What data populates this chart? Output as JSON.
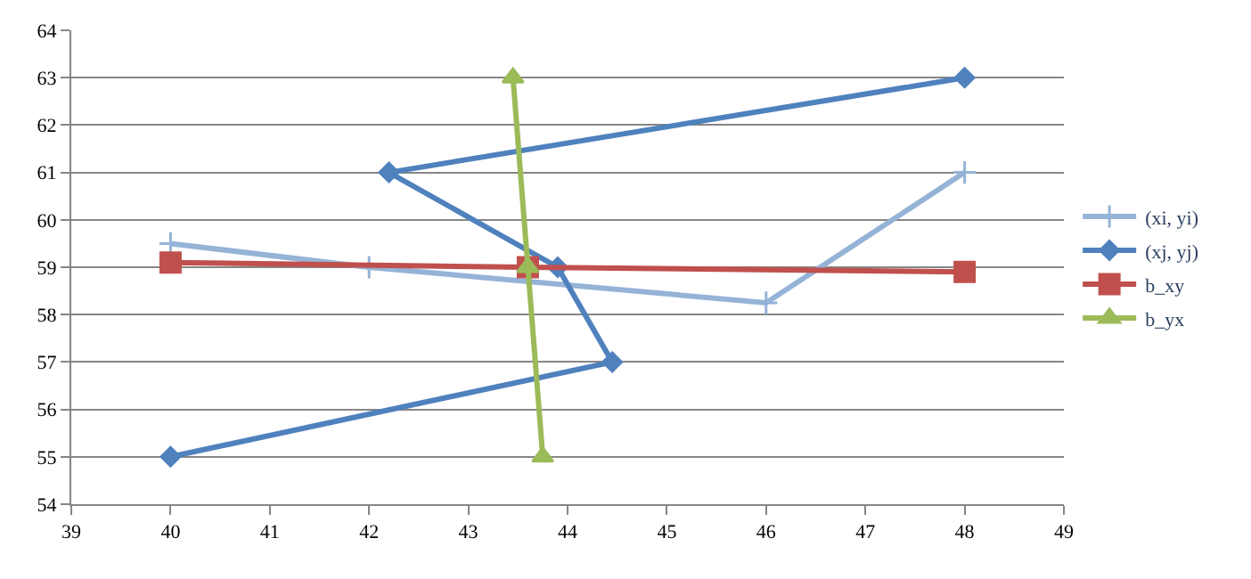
{
  "chart_data": {
    "type": "line",
    "xlim": [
      39,
      49
    ],
    "xticks": [
      39,
      40,
      41,
      42,
      43,
      44,
      45,
      46,
      47,
      48,
      49
    ],
    "ylim": [
      54,
      64
    ],
    "yticks": [
      54,
      55,
      56,
      57,
      58,
      59,
      60,
      61,
      62,
      63,
      64
    ],
    "grid": "y",
    "legend": "right",
    "line_style": "solid",
    "series": [
      {
        "name": "(xi, yi)",
        "color": "#95b3d7",
        "marker": "cross",
        "x": [
          40,
          42,
          46,
          48
        ],
        "values": [
          59.5,
          59.0,
          58.25,
          61
        ]
      },
      {
        "name": "(xj, yj)",
        "color": "#4f81bd",
        "marker": "diamond",
        "x": [
          40,
          44.45,
          43.9,
          42.2,
          48
        ],
        "values": [
          55,
          57,
          59,
          61,
          63
        ]
      },
      {
        "name": "b_xy",
        "color": "#c0504d",
        "marker": "square",
        "x": [
          40,
          43.6,
          48
        ],
        "values": [
          59.1,
          59.0,
          58.9
        ]
      },
      {
        "name": "b_yx",
        "color": "#9bbb59",
        "marker": "triangle",
        "x": [
          43.45,
          43.6,
          43.75
        ],
        "values": [
          63,
          59,
          55
        ]
      }
    ]
  }
}
